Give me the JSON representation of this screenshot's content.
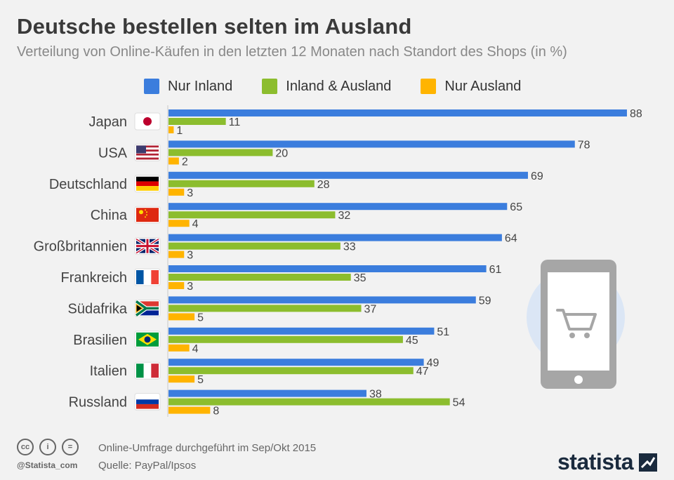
{
  "header": {
    "title": "Deutsche bestellen selten im Ausland",
    "subtitle": "Verteilung von Online-Käufen in den letzten 12 Monaten nach Standort des Shops (in %)"
  },
  "colors": {
    "inland": "#3b7ddd",
    "both": "#8cbd2e",
    "ausland": "#ffb400",
    "label": "#444444"
  },
  "chart_data": {
    "type": "bar",
    "orientation": "horizontal",
    "categories": [
      "Japan",
      "USA",
      "Deutschland",
      "China",
      "Großbritannien",
      "Frankreich",
      "Südafrika",
      "Brasilien",
      "Italien",
      "Russland"
    ],
    "series": [
      {
        "name": "Nur Inland",
        "values": [
          88,
          78,
          69,
          65,
          64,
          61,
          59,
          51,
          49,
          38
        ]
      },
      {
        "name": "Inland & Ausland",
        "values": [
          11,
          20,
          28,
          32,
          33,
          35,
          37,
          45,
          47,
          54
        ]
      },
      {
        "name": "Nur Ausland",
        "values": [
          1,
          2,
          3,
          4,
          3,
          3,
          5,
          4,
          5,
          8
        ]
      }
    ],
    "data_labels": true,
    "legend_position": "top",
    "grid": false
  },
  "flags": [
    "japan-flag-icon",
    "usa-flag-icon",
    "germany-flag-icon",
    "china-flag-icon",
    "uk-flag-icon",
    "france-flag-icon",
    "south-africa-flag-icon",
    "brazil-flag-icon",
    "italy-flag-icon",
    "russia-flag-icon"
  ],
  "illustration": {
    "icon": "smartphone-shopping-cart-icon"
  },
  "footer": {
    "note": "Online-Umfrage durchgeführt im Sep/Okt 2015",
    "source": "Quelle: PayPal/Ipsos",
    "handle": "@Statista_com",
    "brand": "statista",
    "license_icons": [
      "creative-commons-icon",
      "attribution-icon",
      "no-derivatives-icon"
    ]
  }
}
